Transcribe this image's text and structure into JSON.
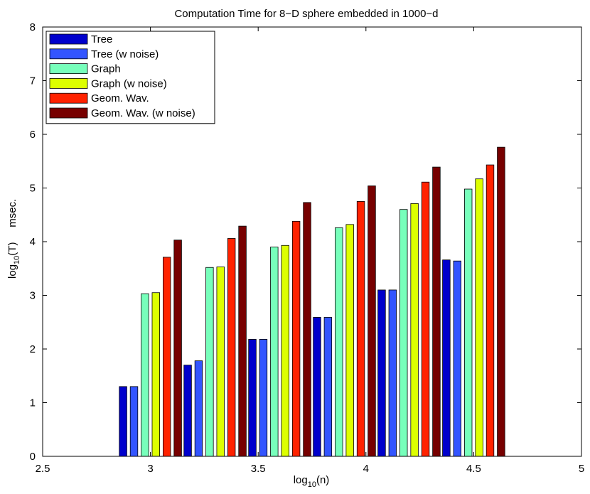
{
  "chart_data": {
    "type": "bar",
    "title": "Computation Time for 8−D sphere embedded in 1000−d",
    "xlabel": {
      "base": "log",
      "sub": "10",
      "rest": "(n)"
    },
    "ylabel": {
      "base": "log",
      "sub": "10",
      "rest": "(T)     msec."
    },
    "xlim": [
      2.5,
      5
    ],
    "ylim": [
      0,
      8
    ],
    "xticks": [
      2.5,
      3,
      3.5,
      4,
      4.5,
      5
    ],
    "xtick_labels": [
      "2.5",
      "3",
      "3.5",
      "4",
      "4.5",
      "5"
    ],
    "yticks": [
      0,
      1,
      2,
      3,
      4,
      5,
      6,
      7,
      8
    ],
    "ytick_labels": [
      "0",
      "1",
      "2",
      "3",
      "4",
      "5",
      "6",
      "7",
      "8"
    ],
    "grid": false,
    "legend_position": "top-left",
    "x": [
      3.0,
      3.3,
      3.6,
      3.9,
      4.2,
      4.5
    ],
    "series": [
      {
        "name": "Tree",
        "color": "#0000cc",
        "values": [
          1.3,
          1.7,
          2.18,
          2.59,
          3.1,
          3.66
        ]
      },
      {
        "name": "Tree (w noise)",
        "color": "#3355ff",
        "values": [
          1.3,
          1.78,
          2.18,
          2.59,
          3.1,
          3.64
        ]
      },
      {
        "name": "Graph",
        "color": "#77ffbb",
        "values": [
          3.03,
          3.52,
          3.9,
          4.26,
          4.6,
          4.98
        ]
      },
      {
        "name": "Graph (w noise)",
        "color": "#ddff00",
        "values": [
          3.05,
          3.53,
          3.93,
          4.32,
          4.71,
          5.17
        ]
      },
      {
        "name": "Geom. Wav.",
        "color": "#ff2200",
        "values": [
          3.71,
          4.06,
          4.38,
          4.75,
          5.11,
          5.43
        ]
      },
      {
        "name": "Geom. Wav. (w noise)",
        "color": "#770000",
        "values": [
          4.03,
          4.29,
          4.73,
          5.04,
          5.39,
          5.76
        ]
      }
    ]
  }
}
